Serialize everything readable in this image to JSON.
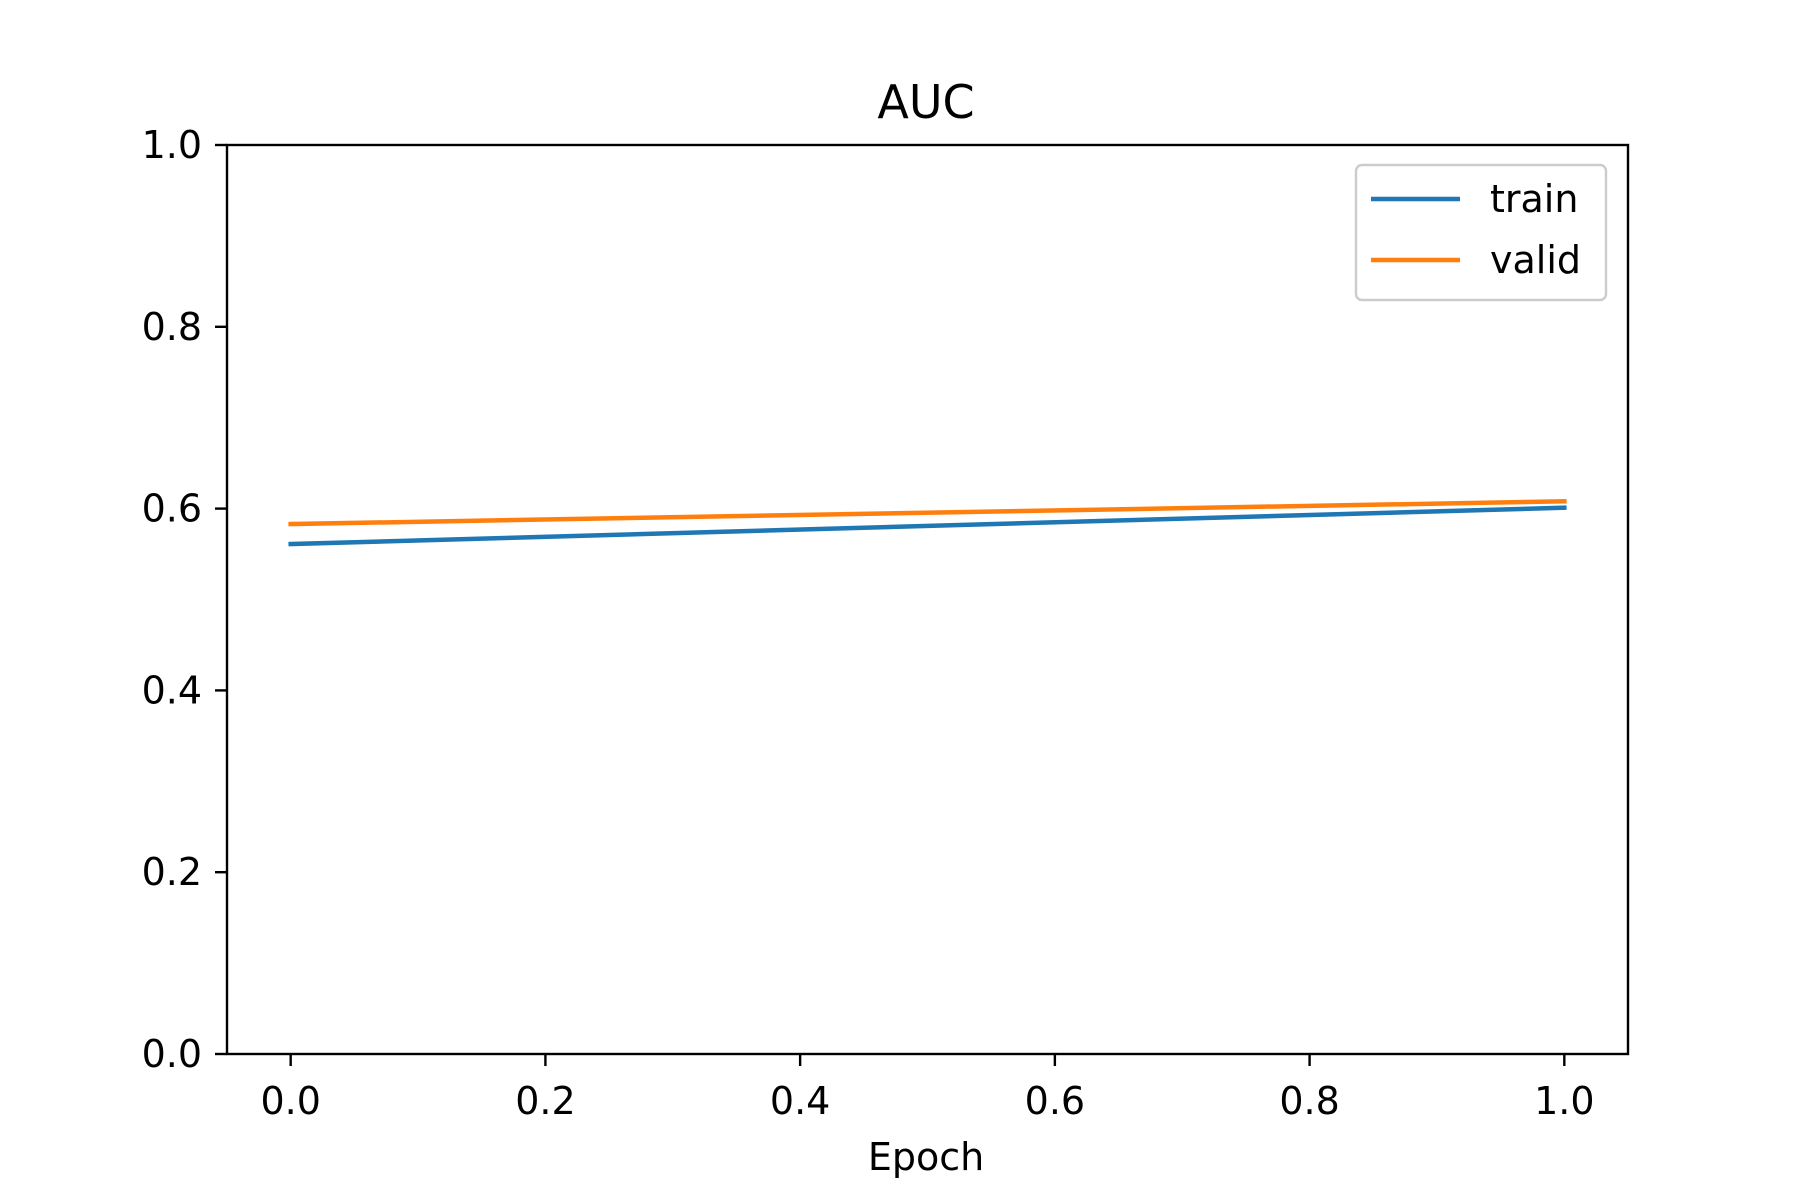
{
  "chart_data": {
    "type": "line",
    "title": "AUC",
    "xlabel": "Epoch",
    "ylabel": "",
    "xlim": [
      -0.05,
      1.05
    ],
    "ylim": [
      0.0,
      1.0
    ],
    "x_ticks": [
      0.0,
      0.2,
      0.4,
      0.6,
      0.8,
      1.0
    ],
    "x_tick_labels": [
      "0.0",
      "0.2",
      "0.4",
      "0.6",
      "0.8",
      "1.0"
    ],
    "y_ticks": [
      0.0,
      0.2,
      0.4,
      0.6,
      0.8,
      1.0
    ],
    "y_tick_labels": [
      "0.0",
      "0.2",
      "0.4",
      "0.6",
      "0.8",
      "1.0"
    ],
    "grid": false,
    "legend_position": "top-right",
    "x": [
      0,
      1
    ],
    "series": [
      {
        "name": "train",
        "color": "#1f77b4",
        "values": [
          0.561,
          0.601
        ]
      },
      {
        "name": "valid",
        "color": "#ff7f0e",
        "values": [
          0.583,
          0.608
        ]
      }
    ]
  }
}
